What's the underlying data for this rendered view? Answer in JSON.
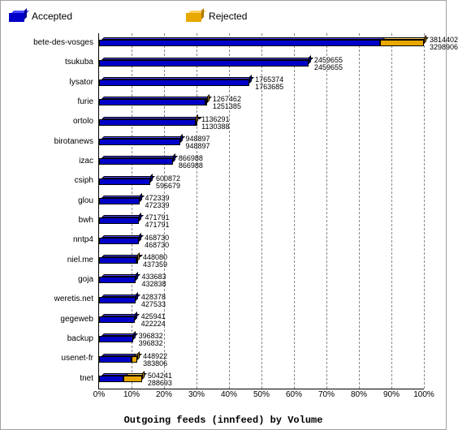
{
  "chart": {
    "type": "bar",
    "title": "Outgoing feeds (innfeed) by Volume",
    "title_fontsize": 12,
    "label_fontsize": 10,
    "value_fontsize": 9,
    "background_color": "#ffffff",
    "grid_color": "#888888",
    "axis_color": "#000000",
    "legend": [
      {
        "label": "Accepted",
        "front": "#0000c8",
        "top": "#4a4aff",
        "side": "#000090"
      },
      {
        "label": "Rejected",
        "front": "#e8a800",
        "top": "#ffd060",
        "side": "#b07800"
      }
    ],
    "x_axis": {
      "ticks": [
        0,
        10,
        20,
        30,
        40,
        50,
        60,
        70,
        80,
        90,
        100
      ],
      "suffix": "%"
    },
    "max_value": 3814402,
    "series": [
      {
        "name": "bete-des-vosges",
        "accepted": 3298906,
        "rejected": 515496,
        "val_top": "3814402",
        "val_bot": "3298906"
      },
      {
        "name": "tsukuba",
        "accepted": 2459655,
        "rejected": 0,
        "val_top": "2459655",
        "val_bot": "2459655"
      },
      {
        "name": "lysator",
        "accepted": 1763685,
        "rejected": 1689,
        "val_top": "1765374",
        "val_bot": "1763685"
      },
      {
        "name": "furie",
        "accepted": 1251385,
        "rejected": 16077,
        "val_top": "1267462",
        "val_bot": "1251385"
      },
      {
        "name": "ortolo",
        "accepted": 1130388,
        "rejected": 5903,
        "val_top": "1136291",
        "val_bot": "1130388"
      },
      {
        "name": "birotanews",
        "accepted": 948897,
        "rejected": 0,
        "val_top": "948897",
        "val_bot": "948897"
      },
      {
        "name": "izac",
        "accepted": 866988,
        "rejected": 0,
        "val_top": "866988",
        "val_bot": "866988"
      },
      {
        "name": "csiph",
        "accepted": 596679,
        "rejected": 4193,
        "val_top": "600872",
        "val_bot": "596679"
      },
      {
        "name": "glou",
        "accepted": 472339,
        "rejected": 0,
        "val_top": "472339",
        "val_bot": "472339"
      },
      {
        "name": "bwh",
        "accepted": 471791,
        "rejected": 0,
        "val_top": "471791",
        "val_bot": "471791"
      },
      {
        "name": "nntp4",
        "accepted": 468730,
        "rejected": 0,
        "val_top": "468730",
        "val_bot": "468730"
      },
      {
        "name": "niel.me",
        "accepted": 437359,
        "rejected": 10721,
        "val_top": "448080",
        "val_bot": "437359"
      },
      {
        "name": "goja",
        "accepted": 432838,
        "rejected": 845,
        "val_top": "433683",
        "val_bot": "432838"
      },
      {
        "name": "weretis.net",
        "accepted": 427533,
        "rejected": 845,
        "val_top": "428378",
        "val_bot": "427533"
      },
      {
        "name": "gegeweb",
        "accepted": 422224,
        "rejected": 3717,
        "val_top": "425941",
        "val_bot": "422224"
      },
      {
        "name": "backup",
        "accepted": 396832,
        "rejected": 0,
        "val_top": "396832",
        "val_bot": "396832"
      },
      {
        "name": "usenet-fr",
        "accepted": 383806,
        "rejected": 65116,
        "val_top": "448922",
        "val_bot": "383806"
      },
      {
        "name": "tnet",
        "accepted": 288693,
        "rejected": 215548,
        "val_top": "504241",
        "val_bot": "288693"
      }
    ]
  }
}
